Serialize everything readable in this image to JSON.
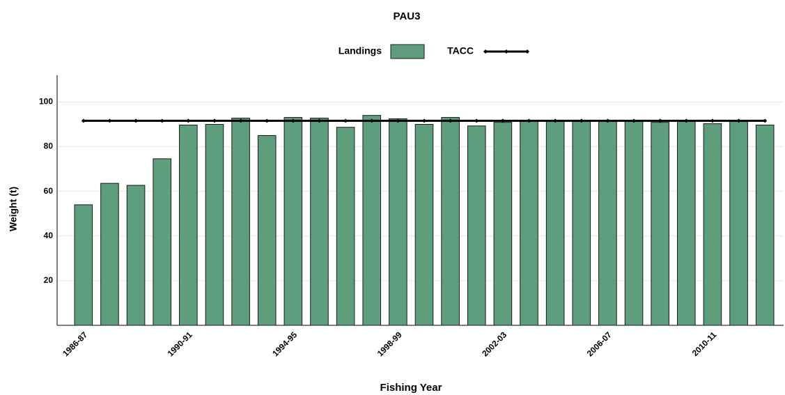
{
  "chart_data": {
    "type": "bar",
    "title": "PAU3",
    "x_label": "Fishing Year",
    "y_label": "Weight (t)",
    "categories": [
      "1986-87",
      null,
      null,
      null,
      "1990-91",
      null,
      null,
      null,
      "1994-95",
      null,
      null,
      null,
      "1998-99",
      null,
      null,
      null,
      "2002-03",
      null,
      null,
      null,
      "2006-07",
      null,
      null,
      null,
      "2010-11",
      null,
      null
    ],
    "series": [
      {
        "name": "Landings",
        "type": "bar",
        "color": "#5f9e7c",
        "values": [
          54,
          63.6,
          62.7,
          74.6,
          89.7,
          90,
          92.8,
          85,
          93.1,
          92.8,
          88.7,
          94,
          92.5,
          90,
          93.1,
          89.3,
          90.9,
          91.5,
          91.5,
          91.5,
          91.5,
          91.5,
          90.9,
          91.5,
          90.3,
          91.5,
          89.7
        ]
      },
      {
        "name": "TACC",
        "type": "line",
        "color": "#000000",
        "values": [
          91.6,
          91.6,
          91.6,
          91.6,
          91.6,
          91.6,
          91.6,
          91.6,
          91.6,
          91.6,
          91.6,
          91.6,
          91.6,
          91.6,
          91.6,
          91.6,
          91.6,
          91.6,
          91.6,
          91.6,
          91.6,
          91.6,
          91.6,
          91.6,
          91.6,
          91.6,
          91.6
        ]
      }
    ],
    "ylim": [
      0,
      112
    ],
    "yticks": [
      20,
      40,
      60,
      80,
      100
    ],
    "grid": true,
    "legend": "top"
  }
}
